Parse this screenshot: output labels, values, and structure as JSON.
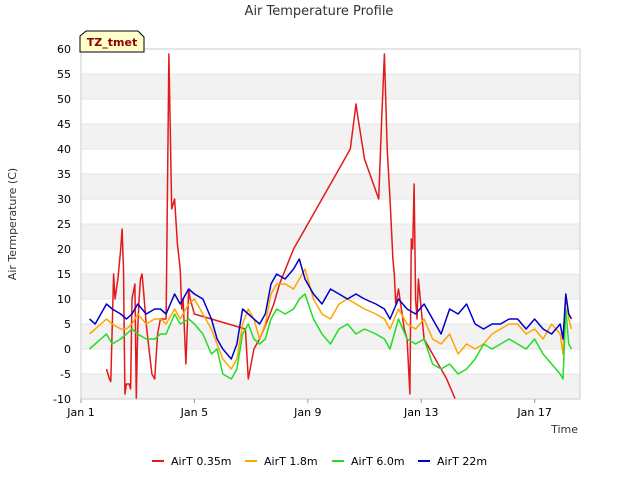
{
  "chart_data": {
    "type": "line",
    "title": "Air Temperature Profile",
    "xlabel": "Time",
    "ylabel": "Air Termperature (C)",
    "badge": "TZ_tmet",
    "x_unit": "day of January",
    "xlim": [
      1,
      18.6
    ],
    "ylim": [
      -10,
      60
    ],
    "x_ticks": [
      {
        "x": 1,
        "label": "Jan 1"
      },
      {
        "x": 5,
        "label": "Jan 5"
      },
      {
        "x": 9,
        "label": "Jan 9"
      },
      {
        "x": 13,
        "label": "Jan 13"
      },
      {
        "x": 17,
        "label": "Jan 17"
      }
    ],
    "y_ticks": [
      -10,
      -5,
      0,
      5,
      10,
      15,
      20,
      25,
      30,
      35,
      40,
      45,
      50,
      55,
      60
    ],
    "grid": "horizontal bands",
    "legend_position": "bottom",
    "series": [
      {
        "name": "AirT 0.35m",
        "color": "#e31a1c",
        "x": [
          1.9,
          2.0,
          2.05,
          2.15,
          2.2,
          2.3,
          2.4,
          2.45,
          2.5,
          2.55,
          2.6,
          2.7,
          2.75,
          2.8,
          2.9,
          2.95,
          3.0,
          3.05,
          3.1,
          3.15,
          3.2,
          3.3,
          3.4,
          3.5,
          3.6,
          3.7,
          3.8,
          3.9,
          4.0,
          4.1,
          4.2,
          4.3,
          4.4,
          4.5,
          4.55,
          4.6,
          4.7,
          4.8,
          4.85,
          4.9,
          4.95,
          5.0,
          6.8,
          6.9,
          7.0,
          7.1,
          7.3,
          7.6,
          7.8,
          8.0,
          8.5,
          9.0,
          9.5,
          10.0,
          10.5,
          10.7,
          10.75,
          11.0,
          11.5,
          11.6,
          11.7,
          11.8,
          11.9,
          12.0,
          12.05,
          12.1,
          12.2,
          12.3,
          12.4,
          12.5,
          12.6,
          12.65,
          12.7,
          12.75,
          12.8,
          12.85,
          12.9,
          13.0,
          13.1,
          13.3,
          13.6,
          13.9,
          14.2
        ],
        "y": [
          -4,
          -6,
          -6.5,
          15,
          10,
          14,
          20,
          24,
          16,
          -9,
          -7,
          -7,
          -8,
          10,
          13,
          -10,
          4,
          10,
          14,
          15,
          12,
          5,
          0,
          -5,
          -6,
          3,
          6,
          6,
          6,
          59,
          28,
          30,
          21,
          16,
          8,
          10,
          -3,
          12,
          10,
          9,
          8,
          7,
          4,
          -6,
          -3,
          0,
          2,
          6,
          9,
          13,
          20,
          25,
          30,
          35,
          40,
          49,
          47,
          38,
          30,
          45,
          59,
          40,
          30,
          18,
          15,
          9,
          12,
          8,
          4,
          2,
          -9,
          22,
          20,
          33,
          10,
          6,
          14,
          8,
          2,
          0,
          -3,
          -6,
          -10
        ]
      },
      {
        "name": "AirT 1.8m",
        "color": "#ffa500",
        "x": [
          1.3,
          1.5,
          1.7,
          1.9,
          2.1,
          2.4,
          2.6,
          2.8,
          3.0,
          3.3,
          3.6,
          3.8,
          4.0,
          4.3,
          4.5,
          4.8,
          5.0,
          5.3,
          5.6,
          5.8,
          6.0,
          6.3,
          6.5,
          6.7,
          6.9,
          7.1,
          7.3,
          7.5,
          7.7,
          7.9,
          8.2,
          8.5,
          8.7,
          8.9,
          9.2,
          9.5,
          9.8,
          10.1,
          10.4,
          10.7,
          11.0,
          11.4,
          11.7,
          11.9,
          12.2,
          12.5,
          12.8,
          13.1,
          13.4,
          13.7,
          14.0,
          14.3,
          14.6,
          14.9,
          15.2,
          15.5,
          15.8,
          16.1,
          16.4,
          16.7,
          17.0,
          17.3,
          17.6,
          17.9,
          18.0,
          18.1,
          18.2,
          18.3
        ],
        "y": [
          3,
          4,
          5,
          6,
          5,
          4,
          4,
          5,
          7,
          5,
          6,
          6,
          5,
          8,
          6,
          9,
          10,
          7,
          4,
          1,
          -2,
          -4,
          -2,
          5,
          8,
          6,
          2,
          5,
          11,
          13,
          13,
          12,
          14,
          16,
          10,
          7,
          6,
          9,
          10,
          9,
          8,
          7,
          6,
          4,
          8,
          5,
          4,
          6,
          2,
          1,
          3,
          -1,
          1,
          0,
          1,
          3,
          4,
          5,
          5,
          3,
          4,
          2,
          5,
          3,
          -1,
          11,
          6,
          4
        ]
      },
      {
        "name": "AirT 6.0m",
        "color": "#22dd22",
        "x": [
          1.3,
          1.5,
          1.7,
          1.9,
          2.1,
          2.4,
          2.6,
          2.8,
          3.0,
          3.3,
          3.6,
          3.8,
          4.0,
          4.3,
          4.5,
          4.8,
          5.0,
          5.3,
          5.6,
          5.8,
          6.0,
          6.3,
          6.5,
          6.7,
          6.9,
          7.1,
          7.3,
          7.5,
          7.7,
          7.9,
          8.2,
          8.5,
          8.7,
          8.9,
          9.2,
          9.5,
          9.8,
          10.1,
          10.4,
          10.7,
          11.0,
          11.4,
          11.7,
          11.9,
          12.2,
          12.5,
          12.8,
          13.1,
          13.4,
          13.7,
          14.0,
          14.3,
          14.6,
          14.9,
          15.2,
          15.5,
          15.8,
          16.1,
          16.4,
          16.7,
          17.0,
          17.3,
          17.6,
          17.9,
          18.0,
          18.1,
          18.2,
          18.3
        ],
        "y": [
          0,
          1,
          2,
          3,
          1,
          2,
          3,
          4,
          3,
          2,
          2,
          3,
          3,
          7,
          5,
          6,
          5,
          3,
          -1,
          0,
          -5,
          -6,
          -4,
          3,
          5,
          2,
          1,
          2,
          6,
          8,
          7,
          8,
          10,
          11,
          6,
          3,
          1,
          4,
          5,
          3,
          4,
          3,
          2,
          0,
          6,
          2,
          1,
          2,
          -3,
          -4,
          -3,
          -5,
          -4,
          -2,
          1,
          0,
          1,
          2,
          1,
          0,
          2,
          -1,
          -3,
          -5,
          -6,
          8,
          1,
          0
        ]
      },
      {
        "name": "AirT 22m",
        "color": "#0000cc",
        "x": [
          1.3,
          1.5,
          1.7,
          1.9,
          2.1,
          2.4,
          2.6,
          2.8,
          3.0,
          3.3,
          3.6,
          3.8,
          4.0,
          4.3,
          4.5,
          4.8,
          5.0,
          5.3,
          5.6,
          5.8,
          6.0,
          6.3,
          6.5,
          6.7,
          6.9,
          7.1,
          7.3,
          7.5,
          7.7,
          7.9,
          8.2,
          8.5,
          8.7,
          8.9,
          9.2,
          9.5,
          9.8,
          10.1,
          10.4,
          10.7,
          11.0,
          11.4,
          11.7,
          11.9,
          12.2,
          12.5,
          12.8,
          13.1,
          13.4,
          13.7,
          14.0,
          14.3,
          14.6,
          14.9,
          15.2,
          15.5,
          15.8,
          16.1,
          16.4,
          16.7,
          17.0,
          17.3,
          17.6,
          17.9,
          18.0,
          18.1,
          18.2,
          18.3
        ],
        "y": [
          6,
          5,
          7,
          9,
          8,
          7,
          6,
          7,
          9,
          7,
          8,
          8,
          7,
          11,
          9,
          12,
          11,
          10,
          6,
          2,
          0,
          -2,
          1,
          8,
          7,
          6,
          5,
          7,
          13,
          15,
          14,
          16,
          18,
          14,
          11,
          9,
          12,
          11,
          10,
          11,
          10,
          9,
          8,
          6,
          10,
          8,
          7,
          9,
          6,
          3,
          8,
          7,
          9,
          5,
          4,
          5,
          5,
          6,
          6,
          4,
          6,
          4,
          3,
          5,
          2,
          11,
          7,
          6
        ]
      }
    ]
  }
}
